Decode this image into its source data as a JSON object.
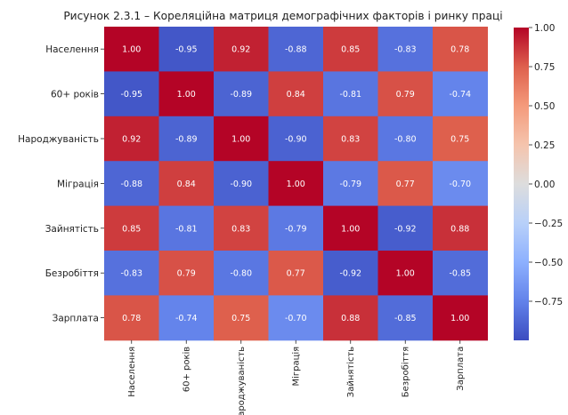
{
  "chart_data": {
    "type": "heatmap",
    "title": "Рисунок 2.3.1 – Кореляційна матриця демографічних факторів і ринку праці",
    "labels": [
      "Населення",
      "60+ років",
      "Народжуваність",
      "Міграція",
      "Зайнятість",
      "Безробіття",
      "Зарплата"
    ],
    "matrix": [
      [
        "1.00",
        "-0.95",
        "0.92",
        "-0.88",
        "0.85",
        "-0.83",
        "0.78"
      ],
      [
        "-0.95",
        "1.00",
        "-0.89",
        "0.84",
        "-0.81",
        "0.79",
        "-0.74"
      ],
      [
        "0.92",
        "-0.89",
        "1.00",
        "-0.90",
        "0.83",
        "-0.80",
        "0.75"
      ],
      [
        "-0.88",
        "0.84",
        "-0.90",
        "1.00",
        "-0.79",
        "0.77",
        "-0.70"
      ],
      [
        "0.85",
        "-0.81",
        "0.83",
        "-0.79",
        "1.00",
        "-0.92",
        "0.88"
      ],
      [
        "-0.83",
        "0.79",
        "-0.80",
        "0.77",
        "-0.92",
        "1.00",
        "-0.85"
      ],
      [
        "0.78",
        "-0.74",
        "0.75",
        "-0.70",
        "0.88",
        "-0.85",
        "1.00"
      ]
    ],
    "colormap": "coolwarm",
    "vmin": -1.0,
    "vmax": 1.0,
    "colorbar_ticks": [
      "1.00",
      "0.75",
      "0.50",
      "0.25",
      "0.00",
      "−0.25",
      "−0.50",
      "−0.75"
    ],
    "colorbar_tick_values": [
      1.0,
      0.75,
      0.5,
      0.25,
      0.0,
      -0.25,
      -0.5,
      -0.75
    ]
  }
}
